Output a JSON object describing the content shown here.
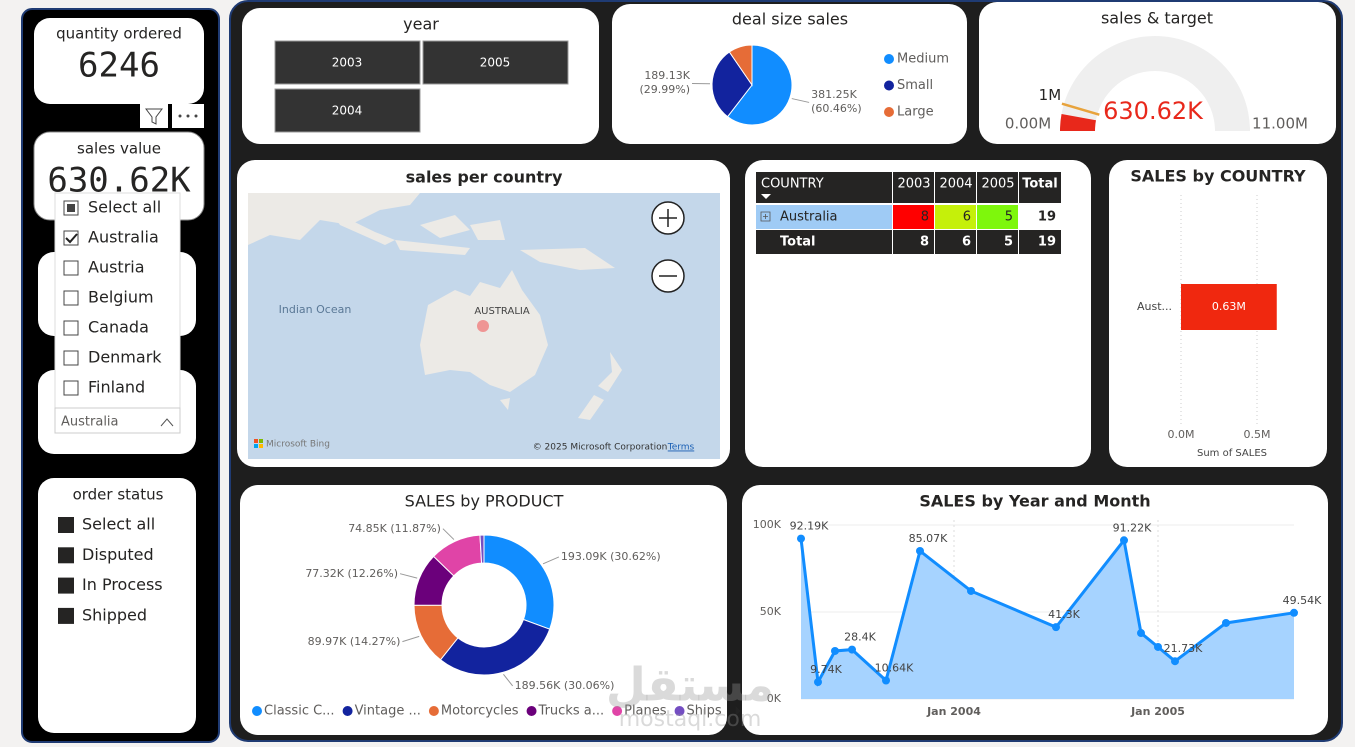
{
  "cards": [
    {
      "label": "quantity ordered",
      "value": "6246"
    },
    {
      "label": "sales value",
      "value": "630.62K"
    }
  ],
  "country_slicer": {
    "items": [
      "Select all",
      "Australia",
      "Austria",
      "Belgium",
      "Canada",
      "Denmark",
      "Finland"
    ],
    "checked": [
      "partial",
      true,
      false,
      false,
      false,
      false,
      false
    ],
    "selected": "Australia"
  },
  "order_status": {
    "title": "order status",
    "items": [
      "Select all",
      "Disputed",
      "In Process",
      "Shipped"
    ]
  },
  "year_slicer": {
    "title": "year",
    "items": [
      "2003",
      "2005",
      "2004"
    ]
  },
  "map": {
    "title": "sales per country",
    "labels": [
      "Indian Ocean",
      "AUSTRALIA"
    ],
    "brand": "Microsoft Bing",
    "copyright": "© 2025 Microsoft Corporation",
    "terms": "Terms"
  },
  "table": {
    "header": [
      "COUNTRY",
      "2003",
      "2004",
      "2005",
      "Total"
    ],
    "rows": [
      [
        "Australia",
        8,
        6,
        5,
        19
      ],
      [
        "Total",
        8,
        6,
        5,
        19
      ]
    ],
    "cell_colors": [
      null,
      "#ff0000",
      "#c5f00a",
      "#7ef70c",
      null
    ]
  },
  "chart_data": [
    {
      "type": "pie",
      "title": "deal size sales",
      "categories": [
        "Medium",
        "Small",
        "Large"
      ],
      "values": [
        60.46,
        29.99,
        9.55
      ],
      "value_labels": [
        "381.25K (60.46%)",
        "189.13K (29.99%)",
        null
      ],
      "colors": [
        "#118dff",
        "#12239e",
        "#e66c37"
      ]
    },
    {
      "type": "gauge",
      "title": "sales & target",
      "value": 630620,
      "value_label": "630.62K",
      "min": 0,
      "min_label": "0.00M",
      "max": 11000000,
      "max_label": "11.00M",
      "target": 1000000,
      "target_label": "1M",
      "color": "#e8281b",
      "target_color": "#e8a33c"
    },
    {
      "type": "bar",
      "orientation": "horizontal",
      "title": "SALES by COUNTRY",
      "categories": [
        "Aust..."
      ],
      "values": [
        0.63
      ],
      "value_labels": [
        "0.63M"
      ],
      "xlim": [
        0,
        0.75
      ],
      "xticks": [
        {
          "value": 0,
          "label": "0.0M"
        },
        {
          "value": 0.5,
          "label": "0.5M"
        }
      ],
      "xlabel": "Sum of SALES",
      "color": "#f0280f",
      "grid": true
    },
    {
      "type": "donut",
      "title": "SALES by PRODUCT",
      "categories": [
        "Classic C...",
        "Vintage ...",
        "Motorcycles",
        "Trucks a...",
        "Planes",
        "Ships"
      ],
      "values": [
        30.62,
        30.06,
        14.27,
        12.26,
        11.87,
        0.92
      ],
      "value_labels": [
        "193.09K (30.62%)",
        "189.56K (30.06%)",
        "89.97K (14.27%)",
        "77.32K (12.26%)",
        "74.85K (11.87%)",
        null
      ],
      "colors": [
        "#118dff",
        "#12239e",
        "#e66c37",
        "#6b007b",
        "#e044a7",
        "#744ec2"
      ]
    },
    {
      "type": "area",
      "title": "SALES by Year and Month",
      "x": [
        "2003-04",
        "2003-05",
        "2003-06",
        "2003-07",
        "2003-09",
        "2003-11",
        "2004-02",
        "2004-07",
        "2004-11",
        "2004-12",
        "2005-01",
        "2005-02",
        "2005-05",
        "2005-09"
      ],
      "values": [
        92.19,
        9.74,
        27.6,
        28.4,
        10.64,
        85.07,
        62.1,
        41.3,
        91.22,
        37.9,
        29.9,
        21.73,
        43.7,
        49.54
      ],
      "value_labels": [
        "92.19K",
        "9.74K",
        null,
        "28.4K",
        "10.64K",
        "85.07K",
        null,
        "41.3K",
        "91.22K",
        null,
        null,
        "21.73K",
        null,
        "49.54K"
      ],
      "xlim": [
        "2003-04",
        "2005-09"
      ],
      "xticks": [
        {
          "value": "2004-01",
          "label": "Jan 2004"
        },
        {
          "value": "2005-01",
          "label": "Jan 2005"
        }
      ],
      "ylim": [
        0,
        100
      ],
      "yticks": [
        {
          "value": 0,
          "label": "0K"
        },
        {
          "value": 50,
          "label": "50K"
        },
        {
          "value": 100,
          "label": "100K"
        }
      ],
      "color": "#118dff",
      "fill": "#a6d3ff",
      "grid": true
    }
  ],
  "watermark": [
    "مستقل",
    "mostaql.com"
  ]
}
